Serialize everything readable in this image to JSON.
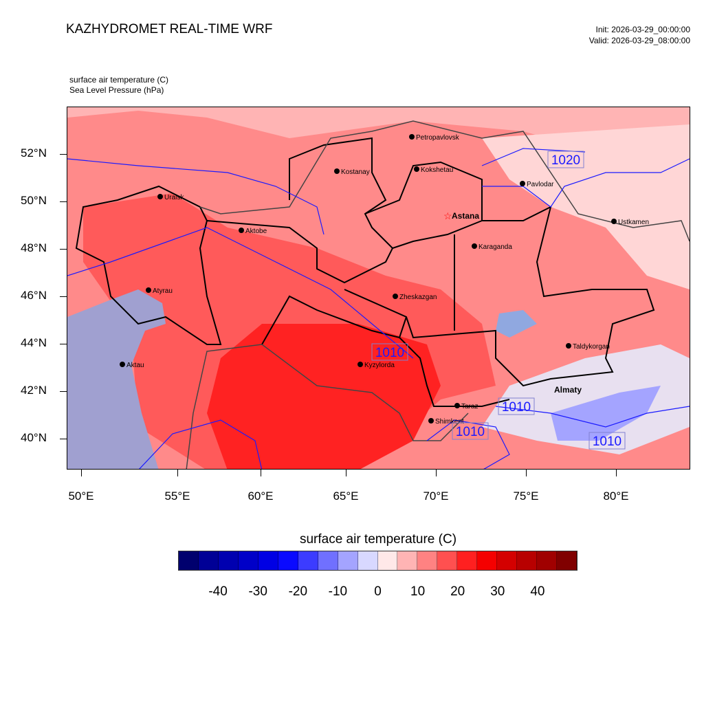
{
  "header": {
    "title": "KAZHYDROMET REAL-TIME WRF",
    "init": "Init: 2026-03-29_00:00:00",
    "valid": "Valid: 2026-03-29_08:00:00"
  },
  "subtitles": {
    "field1": "surface air temperature   (C)",
    "field2": "Sea Level Pressure   (hPa)"
  },
  "axes": {
    "lat_labels": [
      "52°N",
      "50°N",
      "48°N",
      "46°N",
      "44°N",
      "42°N",
      "40°N"
    ],
    "lon_labels": [
      "50°E",
      "55°E",
      "60°E",
      "65°E",
      "70°E",
      "75°E",
      "80°E"
    ]
  },
  "cities": [
    {
      "name": "Petropavlovsk"
    },
    {
      "name": "Kokshetau"
    },
    {
      "name": "Kostanay"
    },
    {
      "name": "Pavlodar"
    },
    {
      "name": "Uralsk"
    },
    {
      "name": "Astana"
    },
    {
      "name": "Aktobe"
    },
    {
      "name": "Ustkamen"
    },
    {
      "name": "Karaganda"
    },
    {
      "name": "Atyrau"
    },
    {
      "name": "Zheskazgan"
    },
    {
      "name": "Taldykorgan"
    },
    {
      "name": "Aktau"
    },
    {
      "name": "Kyzylorda"
    },
    {
      "name": "Almaty"
    },
    {
      "name": "Taraz"
    },
    {
      "name": "Shimkent"
    }
  ],
  "pressure_labels": [
    "1020",
    "1010",
    "1010",
    "1010",
    "1010"
  ],
  "colorbar": {
    "title": "surface air temperature  (C)",
    "labels": [
      "-40",
      "-30",
      "-20",
      "-10",
      "0",
      "10",
      "20",
      "30",
      "40"
    ],
    "colors": [
      "#00006e",
      "#000096",
      "#0000b0",
      "#0000c8",
      "#0000e4",
      "#0a0aff",
      "#3c3cff",
      "#7070ff",
      "#a4a4ff",
      "#d8d8ff",
      "#ffe8e8",
      "#ffb4b4",
      "#ff8282",
      "#ff5050",
      "#ff2020",
      "#f50000",
      "#d40000",
      "#b80000",
      "#a00000",
      "#800000"
    ]
  }
}
